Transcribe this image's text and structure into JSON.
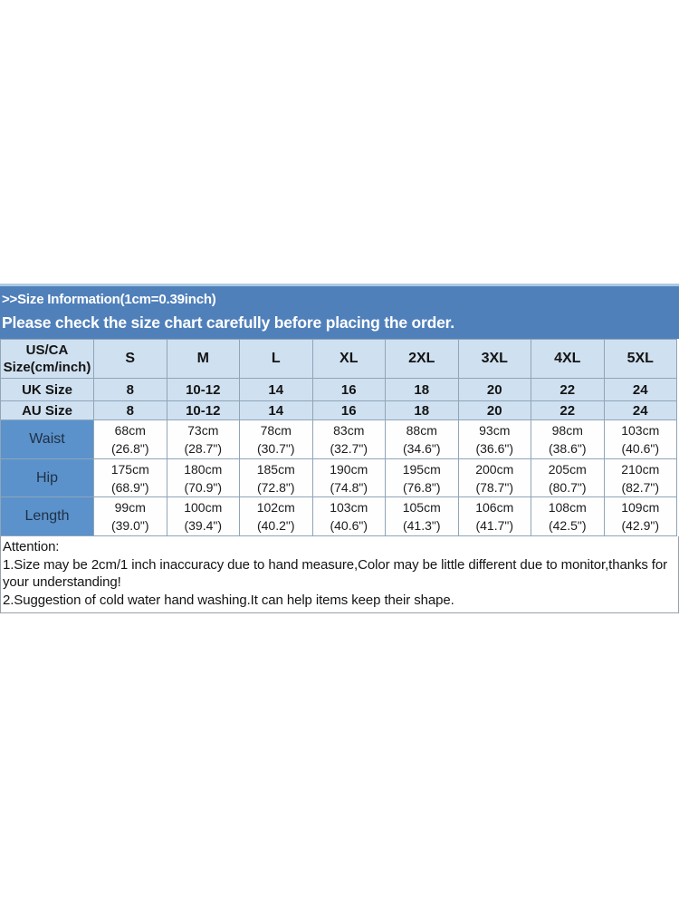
{
  "banner": {
    "title": ">>Size Information(1cm=0.39inch)",
    "subtitle": "Please check the size chart carefully before placing the order."
  },
  "size_table": {
    "corner_header": [
      "US/CA",
      "Size(cm/inch)"
    ],
    "columns": [
      "S",
      "M",
      "L",
      "XL",
      "2XL",
      "3XL",
      "4XL",
      "5XL"
    ],
    "uk_row": {
      "label": "UK Size",
      "values": [
        "8",
        "10-12",
        "14",
        "16",
        "18",
        "20",
        "22",
        "24"
      ]
    },
    "au_row": {
      "label": "AU Size",
      "values": [
        "8",
        "10-12",
        "14",
        "16",
        "18",
        "20",
        "22",
        "24"
      ]
    },
    "measure_rows": [
      {
        "label": "Waist",
        "cm": [
          "68cm",
          "73cm",
          "78cm",
          "83cm",
          "88cm",
          "93cm",
          "98cm",
          "103cm"
        ],
        "inch": [
          "(26.8\")",
          "(28.7\")",
          "(30.7\")",
          "(32.7\")",
          "(34.6\")",
          "(36.6\")",
          "(38.6\")",
          "(40.6\")"
        ]
      },
      {
        "label": "Hip",
        "cm": [
          "175cm",
          "180cm",
          "185cm",
          "190cm",
          "195cm",
          "200cm",
          "205cm",
          "210cm"
        ],
        "inch": [
          "(68.9\")",
          "(70.9\")",
          "(72.8\")",
          "(74.8\")",
          "(76.8\")",
          "(78.7\")",
          "(80.7\")",
          "(82.7\")"
        ]
      },
      {
        "label": "Length",
        "cm": [
          "99cm",
          "100cm",
          "102cm",
          "103cm",
          "105cm",
          "106cm",
          "108cm",
          "109cm"
        ],
        "inch": [
          "(39.0\")",
          "(39.4\")",
          "(40.2\")",
          "(40.6\")",
          "(41.3\")",
          "(41.7\")",
          "(42.5\")",
          "(42.9\")"
        ]
      }
    ]
  },
  "attention": {
    "heading": "Attention:",
    "note1": "1.Size may be 2cm/1 inch inaccuracy due to hand measure,Color may be little different due to monitor,thanks for your understanding!",
    "note2": "2.Suggestion of cold water hand washing.It can help items keep their shape."
  },
  "colors": {
    "banner_bg": "#5080ba",
    "table_header_bg": "#cfe0f0",
    "measure_label_bg": "#5b92cc",
    "table_border": "#8fa5b9"
  }
}
